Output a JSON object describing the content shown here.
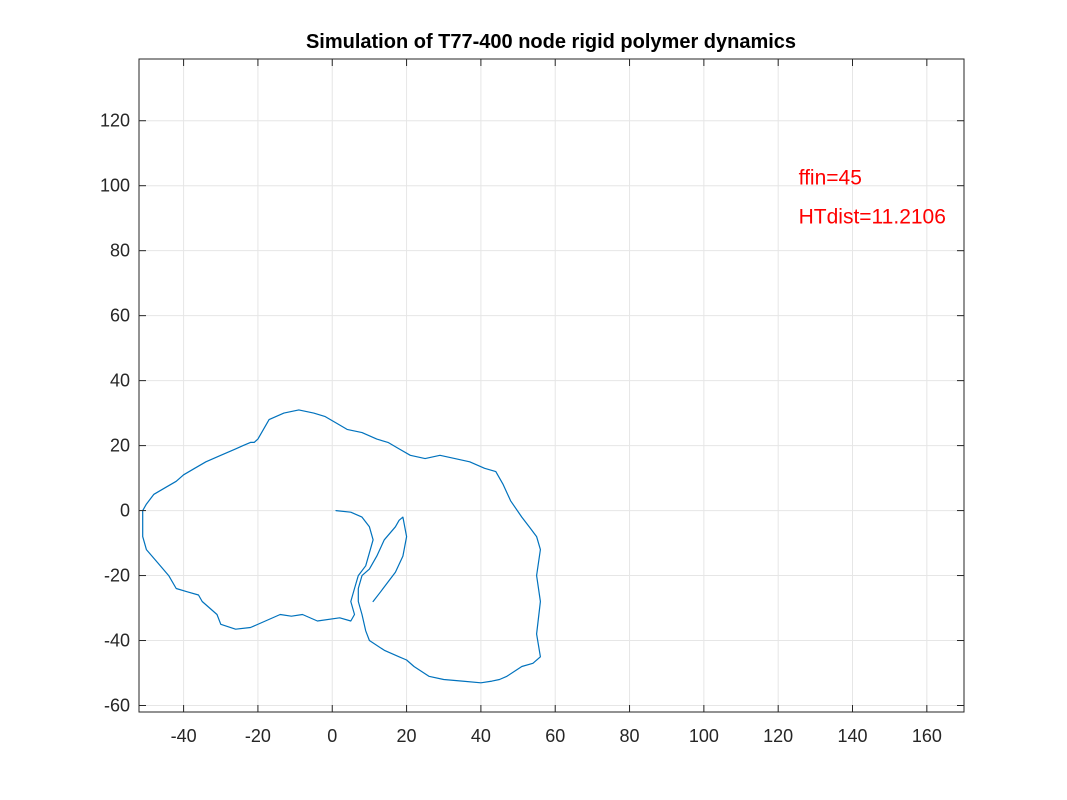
{
  "chart_data": {
    "type": "line",
    "title": "Simulation of T77-400 node rigid polymer dynamics",
    "xlabel": "",
    "ylabel": "",
    "xlim": [
      -52,
      170
    ],
    "ylim": [
      -62,
      139
    ],
    "xticks": [
      -40,
      -20,
      0,
      20,
      40,
      60,
      80,
      100,
      120,
      140,
      160
    ],
    "yticks": [
      -60,
      -40,
      -20,
      0,
      20,
      40,
      60,
      80,
      100,
      120
    ],
    "xtick_labels": [
      "-40",
      "-20",
      "0",
      "20",
      "40",
      "60",
      "80",
      "100",
      "120",
      "140",
      "160"
    ],
    "ytick_labels": [
      "-60",
      "-40",
      "-20",
      "0",
      "20",
      "40",
      "60",
      "80",
      "100",
      "120"
    ],
    "grid": true,
    "series": [
      {
        "color": "#0072bd",
        "x": [
          1,
          5,
          8,
          10,
          11,
          10,
          9,
          7,
          6,
          5,
          6,
          5,
          2,
          -4,
          -8,
          -11,
          -14,
          -18,
          -22,
          -26,
          -30,
          -31,
          -33,
          -35,
          -36,
          -39,
          -42,
          -44,
          -47,
          -50,
          -51,
          -51,
          -51,
          -50,
          -48,
          -45,
          -42,
          -40,
          -37,
          -34,
          -30,
          -26,
          -24,
          -22,
          -21,
          -20,
          -17,
          -13,
          -9,
          -5,
          -2,
          1,
          4,
          8,
          12,
          15,
          18,
          21,
          25,
          29,
          33,
          37,
          41,
          44,
          46,
          48,
          51,
          53,
          55,
          56,
          55,
          56,
          55,
          56,
          54,
          51,
          47,
          45,
          43,
          40,
          35,
          30,
          26,
          22,
          20,
          18,
          14,
          10,
          9,
          8,
          7,
          7,
          8,
          10,
          12,
          14,
          17,
          18,
          19,
          20,
          19,
          17,
          15,
          13,
          11
        ],
        "y": [
          0,
          -0.5,
          -2,
          -5,
          -9,
          -13,
          -17,
          -20,
          -24,
          -28,
          -32,
          -34,
          -33,
          -34,
          -32,
          -32.5,
          -32,
          -34,
          -36,
          -36.5,
          -35,
          -32,
          -30,
          -28,
          -26,
          -25,
          -24,
          -20,
          -16,
          -12,
          -8,
          -4,
          0,
          2,
          5,
          7,
          9,
          11,
          13,
          15,
          17,
          19,
          20,
          21,
          21,
          22,
          28,
          30,
          31,
          30,
          29,
          27,
          25,
          24,
          22,
          21,
          19,
          17,
          16,
          17,
          16,
          15,
          13,
          12,
          8,
          3,
          -2,
          -5,
          -8,
          -12,
          -20,
          -28,
          -38,
          -45,
          -47,
          -48,
          -51,
          -52,
          -52.5,
          -53,
          -52.5,
          -52,
          -51,
          -48,
          -46,
          -45,
          -43,
          -40,
          -37,
          -32,
          -28,
          -24,
          -20,
          -18,
          -14,
          -9,
          -5,
          -3,
          -2,
          -8,
          -14,
          -19,
          -22,
          -25,
          -28
        ]
      }
    ],
    "annotations": [
      {
        "text": "ffin=45",
        "x": 125.5,
        "y": 102.5,
        "color": "#ff0000"
      },
      {
        "text": "HTdist=11.2106",
        "x": 125.5,
        "y": 90.5,
        "color": "#ff0000"
      }
    ]
  }
}
